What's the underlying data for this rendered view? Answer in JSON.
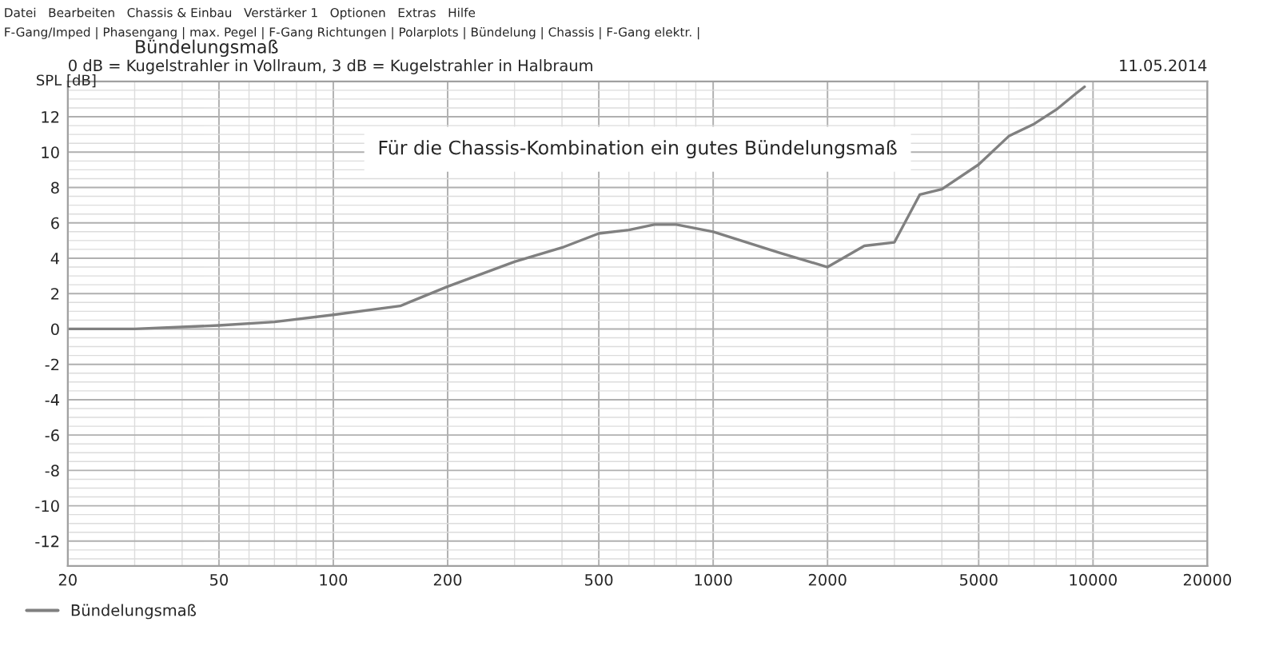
{
  "chart_data": {
    "type": "line",
    "title": "Bündelungsmaß",
    "subtitle": "0 dB = Kugelstrahler in Vollraum, 3 dB = Kugelstrahler in Halbraum",
    "ylabel": "SPL [dB]",
    "annotations": [
      "11.05.2014",
      "Für die Chassis-Kombination ein gutes Bündelungsmaß",
      "Datei   Bearbeiten   Chassis & Einbau   Verstärker 1   Optionen   Extras   Hilfe",
      "F-Gang/Imped | Phasengang | max. Pegel | F-Gang Richtungen | Polarplots | Bündelung | Chassis | F-Gang elektr. |"
    ],
    "x": [
      20,
      30,
      50,
      70,
      100,
      150,
      200,
      300,
      400,
      500,
      600,
      700,
      800,
      1000,
      1500,
      2000,
      2500,
      3000,
      3500,
      4000,
      5000,
      6000,
      7000,
      8000,
      9000,
      9500
    ],
    "series": [
      {
        "name": "Bündelungsmaß",
        "color": "#808080",
        "values": [
          0.0,
          0.0,
          0.2,
          0.4,
          0.8,
          1.3,
          2.4,
          3.8,
          4.6,
          5.4,
          5.6,
          5.9,
          5.9,
          5.5,
          4.3,
          3.5,
          4.7,
          4.9,
          7.6,
          7.9,
          9.3,
          10.9,
          11.6,
          12.4,
          13.3,
          13.7
        ]
      }
    ],
    "log": "x",
    "xlim": [
      20,
      20000
    ],
    "xticks": [
      20,
      50,
      100,
      200,
      500,
      1000,
      2000,
      5000,
      10000,
      20000
    ],
    "ylim": [
      -13.4,
      14
    ],
    "yticks": [
      -12,
      -10,
      -8,
      -6,
      -4,
      -2,
      0,
      2,
      4,
      6,
      8,
      10,
      12
    ],
    "grid": true,
    "legend": "bottom left",
    "marker": "none",
    "line_style": "solid"
  }
}
